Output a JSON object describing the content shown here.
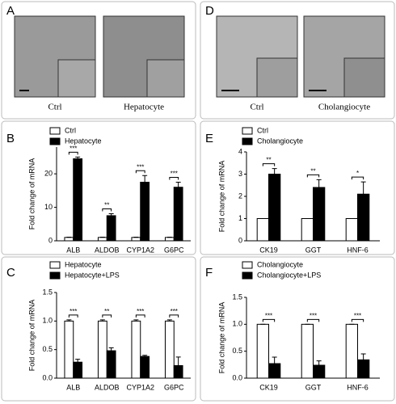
{
  "panel_labels": [
    "A",
    "B",
    "C",
    "D",
    "E",
    "F"
  ],
  "images": [
    {
      "caption": "Ctrl"
    },
    {
      "caption": "Hepatocyte"
    },
    {
      "caption": "Ctrl"
    },
    {
      "caption": "Cholangiocyte"
    }
  ],
  "chart_data": [
    {
      "type": "bar",
      "y_label": "Fold change of  mRNA",
      "categories": [
        "ALB",
        "ALDOB",
        "CYP1A2",
        "G6PC"
      ],
      "series": [
        {
          "name": "Ctrl",
          "color": "#ffffff",
          "values": [
            1,
            1,
            1,
            1
          ],
          "errors": [
            0.1,
            0.1,
            0.1,
            0.1
          ]
        },
        {
          "name": "Hepatocyte",
          "color": "#000000",
          "values": [
            24.5,
            7.5,
            17.5,
            16
          ],
          "errors": [
            0.5,
            0.6,
            2,
            1.5
          ]
        }
      ],
      "significance": [
        "***",
        "**",
        "***",
        "***"
      ],
      "ylim": [
        0,
        28
      ],
      "yticks": [
        0,
        10,
        20
      ]
    },
    {
      "type": "bar",
      "y_label": "Fold change of  mRNA",
      "categories": [
        "ALB",
        "ALDOB",
        "CYP1A2",
        "G6PC"
      ],
      "series": [
        {
          "name": "Hepatocyte",
          "color": "#ffffff",
          "values": [
            1,
            1,
            1,
            1
          ],
          "errors": [
            0.02,
            0.02,
            0.02,
            0.02
          ]
        },
        {
          "name": "Hepatocyte+LPS",
          "color": "#000000",
          "values": [
            0.28,
            0.48,
            0.38,
            0.22
          ],
          "errors": [
            0.05,
            0.05,
            0.02,
            0.15
          ]
        }
      ],
      "significance": [
        "***",
        "**",
        "***",
        "***"
      ],
      "ylim": [
        0,
        1.5
      ],
      "yticks": [
        {
          "value": 0,
          "label": "0.0"
        },
        {
          "value": 0.5,
          "label": "0.5"
        },
        {
          "value": 1,
          "label": "1.0"
        },
        {
          "value": 1.5,
          "label": "1.5"
        }
      ]
    },
    {
      "type": "bar",
      "y_label": "Fold change of  mRNA",
      "categories": [
        "CK19",
        "GGT",
        "HNF-6"
      ],
      "series": [
        {
          "name": "Ctrl",
          "color": "#ffffff",
          "values": [
            1,
            1,
            1
          ],
          "errors": [
            0,
            0,
            0
          ]
        },
        {
          "name": "Cholangiocyte",
          "color": "#000000",
          "values": [
            3.0,
            2.4,
            2.1
          ],
          "errors": [
            0.25,
            0.35,
            0.55
          ]
        }
      ],
      "significance": [
        "**",
        "**",
        "*"
      ],
      "ylim": [
        0,
        4
      ],
      "yticks": [
        0,
        1,
        2,
        3,
        4
      ]
    },
    {
      "type": "bar",
      "y_label": "Fold change of  mRNA",
      "categories": [
        "CK19",
        "GGT",
        "HNF-6"
      ],
      "series": [
        {
          "name": "Cholangiocyte",
          "color": "#ffffff",
          "values": [
            1,
            1,
            1
          ],
          "errors": [
            0,
            0,
            0
          ]
        },
        {
          "name": "Cholangiocyte+LPS",
          "color": "#000000",
          "values": [
            0.27,
            0.24,
            0.34
          ],
          "errors": [
            0.12,
            0.08,
            0.11
          ]
        }
      ],
      "significance": [
        "***",
        "***",
        "***"
      ],
      "ylim": [
        0,
        1.5
      ],
      "yticks": [
        {
          "value": 0,
          "label": "0.0"
        },
        {
          "value": 0.5,
          "label": "0.5"
        },
        {
          "value": 1,
          "label": "1.0"
        },
        {
          "value": 1.5,
          "label": "1.5"
        }
      ]
    }
  ]
}
